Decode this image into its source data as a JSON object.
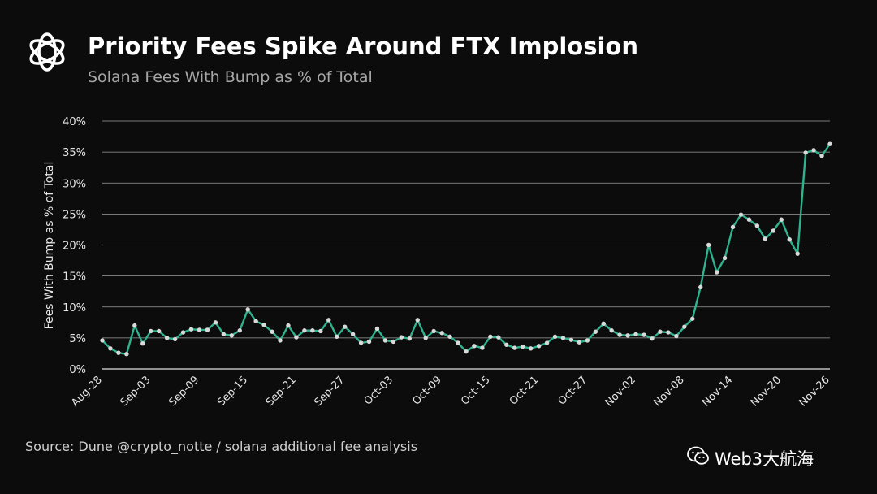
{
  "header": {
    "title": "Priority Fees Spike Around FTX Implosion",
    "subtitle": "Solana Fees With Bump as % of Total"
  },
  "footer": {
    "source": "Source: Dune @crypto_notte / solana additional fee analysis",
    "watermark": "Web3大航海"
  },
  "icons": {
    "logo": "flower-logo-icon",
    "watermark": "wechat-icon"
  },
  "colors": {
    "line": "#2fb38f",
    "points": "#d9d9d9",
    "background": "#0c0c0c",
    "grid": "#d0d0d0"
  },
  "chart_data": {
    "type": "line",
    "title": "",
    "ylabel": "Fees With Bump as % of Total",
    "xlabel": "",
    "ylim": [
      0,
      40
    ],
    "y_ticks": [
      "0%",
      "5%",
      "10%",
      "15%",
      "20%",
      "25%",
      "30%",
      "35%",
      "40%"
    ],
    "x_tick_labels": [
      "Aug-28",
      "Sep-03",
      "Sep-09",
      "Sep-15",
      "Sep-21",
      "Sep-27",
      "Oct-03",
      "Oct-09",
      "Oct-15",
      "Oct-21",
      "Oct-27",
      "Nov-02",
      "Nov-08",
      "Nov-14",
      "Nov-20",
      "Nov-26"
    ],
    "grid": true,
    "series": [
      {
        "values": [
          4.6,
          3.3,
          2.6,
          2.4,
          7.0,
          4.1,
          6.1,
          6.1,
          5.0,
          4.8,
          5.9,
          6.4,
          6.3,
          6.3,
          7.5,
          5.6,
          5.4,
          6.2,
          9.6,
          7.7,
          7.1,
          6.0,
          4.6,
          7.0,
          5.1,
          6.2,
          6.2,
          6.1,
          7.9,
          5.2,
          6.8,
          5.6,
          4.2,
          4.4,
          6.5,
          4.6,
          4.4,
          5.1,
          4.9,
          7.9,
          5.0,
          6.1,
          5.8,
          5.2,
          4.2,
          2.8,
          3.7,
          3.4,
          5.2,
          5.1,
          3.9,
          3.4,
          3.6,
          3.3,
          3.7,
          4.2,
          5.2,
          5.0,
          4.7,
          4.3,
          4.6,
          6.0,
          7.3,
          6.2,
          5.5,
          5.4,
          5.6,
          5.5,
          4.9,
          6.0,
          5.9,
          5.3,
          6.8,
          8.1,
          13.2,
          20.0,
          15.6,
          17.9,
          22.9,
          24.9,
          24.1,
          23.1,
          21.0,
          22.3,
          24.1,
          20.9,
          18.6,
          34.9,
          35.3,
          34.4,
          36.3
        ]
      }
    ]
  }
}
